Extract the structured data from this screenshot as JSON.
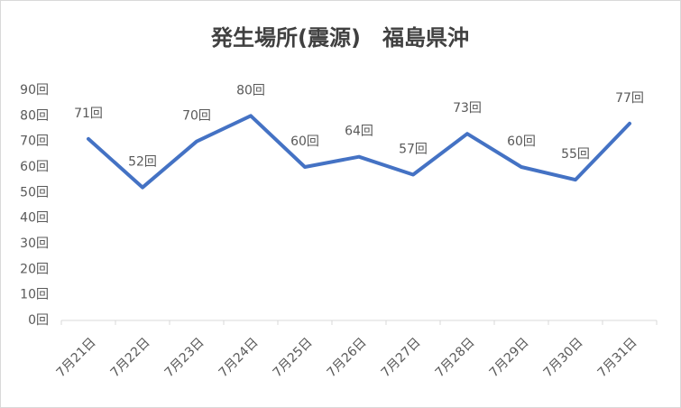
{
  "chart_data": {
    "type": "line",
    "title": "発生場所(震源)　福島県沖",
    "categories": [
      "7月21日",
      "7月22日",
      "7月23日",
      "7月24日",
      "7月25日",
      "7月26日",
      "7月27日",
      "7月28日",
      "7月29日",
      "7月30日",
      "7月31日"
    ],
    "values": [
      71,
      52,
      70,
      80,
      60,
      64,
      57,
      73,
      60,
      55,
      77
    ],
    "value_labels": [
      "71回",
      "52回",
      "70回",
      "80回",
      "60回",
      "64回",
      "57回",
      "73回",
      "60回",
      "55回",
      "77回"
    ],
    "color": "#4472c4",
    "ylim": [
      0,
      90
    ],
    "yticks": [
      {
        "value": 0,
        "label": "0回"
      },
      {
        "value": 10,
        "label": "10回"
      },
      {
        "value": 20,
        "label": "20回"
      },
      {
        "value": 30,
        "label": "30回"
      },
      {
        "value": 40,
        "label": "40回"
      },
      {
        "value": 50,
        "label": "50回"
      },
      {
        "value": 60,
        "label": "60回"
      },
      {
        "value": 70,
        "label": "70回"
      },
      {
        "value": 80,
        "label": "80回"
      },
      {
        "value": 90,
        "label": "90回"
      }
    ],
    "grid": false
  }
}
